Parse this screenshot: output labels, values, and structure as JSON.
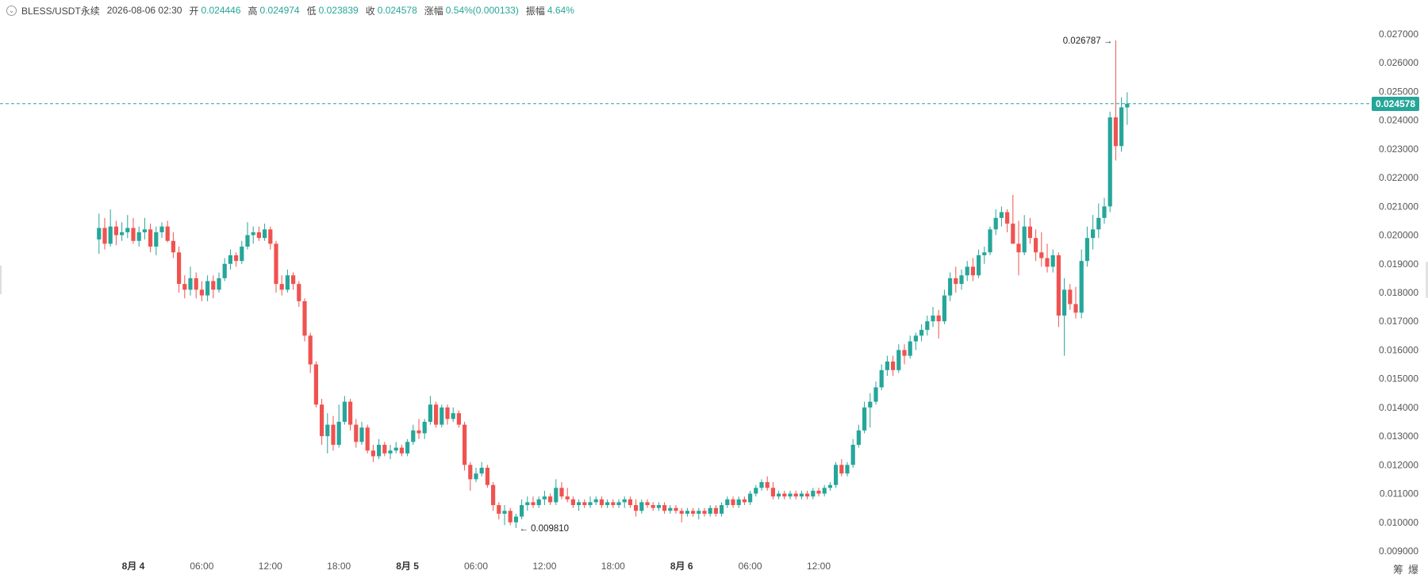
{
  "header": {
    "symbol": "BLESS/USDT永续",
    "time": "2026-08-06 02:30",
    "open_label": "开",
    "open": "0.024446",
    "high_label": "高",
    "high": "0.024974",
    "low_label": "低",
    "low": "0.023839",
    "close_label": "收",
    "close": "0.024578",
    "change_label": "涨幅",
    "change": "0.54%(0.000133)",
    "amplitude_label": "振幅",
    "amplitude": "4.64%"
  },
  "colors": {
    "up": "#26a69a",
    "down": "#ef5350",
    "last_price_line": "#26a69a"
  },
  "corner_buttons": [
    "筹",
    "爆"
  ],
  "chart_data": {
    "type": "candlestick",
    "y_axis": {
      "min": 0.009,
      "max": 0.027,
      "ticks": [
        "0.009000",
        "0.010000",
        "0.011000",
        "0.012000",
        "0.013000",
        "0.014000",
        "0.015000",
        "0.016000",
        "0.017000",
        "0.018000",
        "0.019000",
        "0.020000",
        "0.021000",
        "0.022000",
        "0.023000",
        "0.024000",
        "0.025000",
        "0.026000",
        "0.027000"
      ],
      "position": "right"
    },
    "x_axis": {
      "ticks": [
        {
          "label": "8月 4",
          "time": "2026-08-04 00:00",
          "bold": true
        },
        {
          "label": "06:00",
          "time": "2026-08-04 06:00",
          "bold": false
        },
        {
          "label": "12:00",
          "time": "2026-08-04 12:00",
          "bold": false
        },
        {
          "label": "18:00",
          "time": "2026-08-04 18:00",
          "bold": false
        },
        {
          "label": "8月 5",
          "time": "2026-08-05 00:00",
          "bold": true
        },
        {
          "label": "06:00",
          "time": "2026-08-05 06:00",
          "bold": false
        },
        {
          "label": "12:00",
          "time": "2026-08-05 12:00",
          "bold": false
        },
        {
          "label": "18:00",
          "time": "2026-08-05 18:00",
          "bold": false
        },
        {
          "label": "8月 6",
          "time": "2026-08-06 00:00",
          "bold": true
        },
        {
          "label": "06:00",
          "time": "2026-08-06 06:00",
          "bold": false
        },
        {
          "label": "12:00",
          "time": "2026-08-06 12:00",
          "bold": false
        }
      ]
    },
    "interval": "30m",
    "last_price": "0.024578",
    "annotations": {
      "high": "0.026787",
      "low": "0.009810"
    },
    "candles_start": "2026-08-03 21:00",
    "candles": [
      [
        0.01985,
        0.02075,
        0.01935,
        0.02025
      ],
      [
        0.02025,
        0.0206,
        0.0195,
        0.0197
      ],
      [
        0.0197,
        0.0209,
        0.0196,
        0.0203
      ],
      [
        0.0203,
        0.0205,
        0.01965,
        0.02
      ],
      [
        0.02,
        0.02045,
        0.0198,
        0.0201
      ],
      [
        0.0201,
        0.0207,
        0.0199,
        0.02025
      ],
      [
        0.02025,
        0.0206,
        0.0197,
        0.0198
      ],
      [
        0.0198,
        0.0203,
        0.0196,
        0.0201
      ],
      [
        0.0201,
        0.0206,
        0.01985,
        0.0202
      ],
      [
        0.0202,
        0.0204,
        0.0194,
        0.0196
      ],
      [
        0.0196,
        0.0203,
        0.0193,
        0.0201
      ],
      [
        0.0201,
        0.02045,
        0.0199,
        0.0203
      ],
      [
        0.0203,
        0.0205,
        0.01975,
        0.0198
      ],
      [
        0.0198,
        0.0201,
        0.0192,
        0.0194
      ],
      [
        0.0194,
        0.0196,
        0.018,
        0.0183
      ],
      [
        0.0183,
        0.0186,
        0.0178,
        0.0181
      ],
      [
        0.0181,
        0.0189,
        0.0179,
        0.0185
      ],
      [
        0.0185,
        0.0187,
        0.0178,
        0.0181
      ],
      [
        0.0181,
        0.0184,
        0.0177,
        0.0179
      ],
      [
        0.0179,
        0.0186,
        0.0177,
        0.0184
      ],
      [
        0.0184,
        0.0186,
        0.0178,
        0.0181
      ],
      [
        0.0181,
        0.0187,
        0.018,
        0.0185
      ],
      [
        0.0185,
        0.0192,
        0.0184,
        0.019
      ],
      [
        0.019,
        0.0195,
        0.0188,
        0.0193
      ],
      [
        0.0193,
        0.0194,
        0.0189,
        0.0191
      ],
      [
        0.0191,
        0.0198,
        0.019,
        0.0196
      ],
      [
        0.0196,
        0.02045,
        0.0195,
        0.02
      ],
      [
        0.02,
        0.0203,
        0.0197,
        0.0201
      ],
      [
        0.0201,
        0.0203,
        0.0198,
        0.0199
      ],
      [
        0.0199,
        0.0204,
        0.0198,
        0.0202
      ],
      [
        0.0202,
        0.0203,
        0.0195,
        0.0197
      ],
      [
        0.0197,
        0.0198,
        0.018,
        0.0183
      ],
      [
        0.0183,
        0.0186,
        0.0179,
        0.0181
      ],
      [
        0.0181,
        0.0188,
        0.018,
        0.0186
      ],
      [
        0.0186,
        0.0187,
        0.0181,
        0.0183
      ],
      [
        0.0183,
        0.0184,
        0.0175,
        0.0177
      ],
      [
        0.0177,
        0.0178,
        0.0163,
        0.0165
      ],
      [
        0.0165,
        0.0166,
        0.0152,
        0.0155
      ],
      [
        0.0155,
        0.0156,
        0.014,
        0.0141
      ],
      [
        0.0141,
        0.0143,
        0.0127,
        0.013
      ],
      [
        0.013,
        0.0138,
        0.0124,
        0.0134
      ],
      [
        0.0134,
        0.0137,
        0.0125,
        0.0127
      ],
      [
        0.0127,
        0.0141,
        0.0126,
        0.0135
      ],
      [
        0.0135,
        0.0144,
        0.0134,
        0.0142
      ],
      [
        0.0142,
        0.0143,
        0.0132,
        0.0134
      ],
      [
        0.0134,
        0.0136,
        0.0126,
        0.0128
      ],
      [
        0.0128,
        0.0135,
        0.0127,
        0.0133
      ],
      [
        0.0133,
        0.0134,
        0.0124,
        0.0125
      ],
      [
        0.0125,
        0.0127,
        0.0121,
        0.0123
      ],
      [
        0.0123,
        0.0129,
        0.0122,
        0.0127
      ],
      [
        0.0127,
        0.0128,
        0.0123,
        0.0124
      ],
      [
        0.0124,
        0.0127,
        0.0122,
        0.0125
      ],
      [
        0.0125,
        0.0128,
        0.0124,
        0.0126
      ],
      [
        0.0126,
        0.0127,
        0.0123,
        0.0124
      ],
      [
        0.0124,
        0.0129,
        0.0123,
        0.0128
      ],
      [
        0.0128,
        0.0134,
        0.0127,
        0.0132
      ],
      [
        0.0132,
        0.0136,
        0.0129,
        0.0131
      ],
      [
        0.0131,
        0.0136,
        0.0129,
        0.0135
      ],
      [
        0.0135,
        0.0144,
        0.0134,
        0.0141
      ],
      [
        0.0141,
        0.0142,
        0.0133,
        0.0134
      ],
      [
        0.0134,
        0.0141,
        0.0133,
        0.014
      ],
      [
        0.014,
        0.0141,
        0.0134,
        0.0136
      ],
      [
        0.0136,
        0.014,
        0.0135,
        0.0138
      ],
      [
        0.0138,
        0.0139,
        0.0133,
        0.0134
      ],
      [
        0.0134,
        0.0135,
        0.0118,
        0.012
      ],
      [
        0.012,
        0.0121,
        0.0111,
        0.0115
      ],
      [
        0.0115,
        0.0119,
        0.0114,
        0.0117
      ],
      [
        0.0117,
        0.0121,
        0.0116,
        0.0119
      ],
      [
        0.0119,
        0.012,
        0.0112,
        0.0113
      ],
      [
        0.0113,
        0.0114,
        0.0104,
        0.0106
      ],
      [
        0.0106,
        0.0107,
        0.0101,
        0.0103
      ],
      [
        0.0103,
        0.0106,
        0.0099,
        0.0104
      ],
      [
        0.0104,
        0.0105,
        0.0099,
        0.01
      ],
      [
        0.01,
        0.0103,
        0.0098,
        0.0102
      ],
      [
        0.0102,
        0.0108,
        0.0101,
        0.0106
      ],
      [
        0.0106,
        0.0109,
        0.0104,
        0.0107
      ],
      [
        0.0107,
        0.0109,
        0.0105,
        0.0106
      ],
      [
        0.0106,
        0.0109,
        0.0105,
        0.0108
      ],
      [
        0.0108,
        0.0111,
        0.0106,
        0.0109
      ],
      [
        0.0109,
        0.011,
        0.0106,
        0.0107
      ],
      [
        0.0107,
        0.0115,
        0.0106,
        0.0112
      ],
      [
        0.0112,
        0.0114,
        0.0108,
        0.0109
      ],
      [
        0.0109,
        0.0112,
        0.0107,
        0.0108
      ],
      [
        0.0108,
        0.0109,
        0.0105,
        0.0106
      ],
      [
        0.0106,
        0.0108,
        0.0104,
        0.0107
      ],
      [
        0.0107,
        0.0108,
        0.0105,
        0.0106
      ],
      [
        0.0106,
        0.0109,
        0.0105,
        0.0107
      ],
      [
        0.0107,
        0.0109,
        0.0106,
        0.0108
      ],
      [
        0.0108,
        0.0109,
        0.0105,
        0.0106
      ],
      [
        0.0106,
        0.0108,
        0.0105,
        0.0107
      ],
      [
        0.0107,
        0.0108,
        0.0105,
        0.0106
      ],
      [
        0.0106,
        0.0108,
        0.0105,
        0.0107
      ],
      [
        0.0107,
        0.0109,
        0.0105,
        0.0108
      ],
      [
        0.0108,
        0.0109,
        0.0105,
        0.0106
      ],
      [
        0.0106,
        0.0108,
        0.0102,
        0.0104
      ],
      [
        0.0104,
        0.0108,
        0.0103,
        0.0107
      ],
      [
        0.0107,
        0.0108,
        0.0105,
        0.0106
      ],
      [
        0.0106,
        0.0107,
        0.0104,
        0.0105
      ],
      [
        0.0105,
        0.0107,
        0.0104,
        0.0106
      ],
      [
        0.0106,
        0.0107,
        0.0103,
        0.0104
      ],
      [
        0.0104,
        0.0106,
        0.0103,
        0.0105
      ],
      [
        0.0105,
        0.0106,
        0.0103,
        0.0104
      ],
      [
        0.0104,
        0.0105,
        0.01,
        0.0103
      ],
      [
        0.0103,
        0.0105,
        0.0102,
        0.0104
      ],
      [
        0.0104,
        0.0105,
        0.0102,
        0.0103
      ],
      [
        0.0103,
        0.0105,
        0.0101,
        0.0104
      ],
      [
        0.0104,
        0.0105,
        0.0102,
        0.0103
      ],
      [
        0.0103,
        0.0106,
        0.0102,
        0.0105
      ],
      [
        0.0105,
        0.0106,
        0.0102,
        0.0103
      ],
      [
        0.0103,
        0.0107,
        0.0102,
        0.0106
      ],
      [
        0.0106,
        0.0109,
        0.0105,
        0.0108
      ],
      [
        0.0108,
        0.0109,
        0.0105,
        0.0106
      ],
      [
        0.0106,
        0.0109,
        0.0105,
        0.0108
      ],
      [
        0.0108,
        0.0109,
        0.0106,
        0.0107
      ],
      [
        0.0107,
        0.0111,
        0.0106,
        0.011
      ],
      [
        0.011,
        0.0113,
        0.0109,
        0.0112
      ],
      [
        0.0112,
        0.0115,
        0.0111,
        0.0114
      ],
      [
        0.0114,
        0.0116,
        0.0111,
        0.0112
      ],
      [
        0.0112,
        0.0114,
        0.0108,
        0.0109
      ],
      [
        0.0109,
        0.0111,
        0.0108,
        0.011
      ],
      [
        0.011,
        0.0111,
        0.0108,
        0.0109
      ],
      [
        0.0109,
        0.0111,
        0.0108,
        0.011
      ],
      [
        0.011,
        0.0111,
        0.0108,
        0.0109
      ],
      [
        0.0109,
        0.0111,
        0.0108,
        0.011
      ],
      [
        0.011,
        0.0111,
        0.0108,
        0.0109
      ],
      [
        0.0109,
        0.0112,
        0.0108,
        0.0111
      ],
      [
        0.0111,
        0.0112,
        0.0109,
        0.011
      ],
      [
        0.011,
        0.0113,
        0.0109,
        0.0112
      ],
      [
        0.0112,
        0.0114,
        0.0111,
        0.0113
      ],
      [
        0.0113,
        0.0121,
        0.0112,
        0.012
      ],
      [
        0.012,
        0.0122,
        0.0116,
        0.0117
      ],
      [
        0.0117,
        0.0121,
        0.0116,
        0.012
      ],
      [
        0.012,
        0.0129,
        0.0119,
        0.0127
      ],
      [
        0.0127,
        0.0134,
        0.0126,
        0.0132
      ],
      [
        0.0132,
        0.0142,
        0.0131,
        0.014
      ],
      [
        0.014,
        0.0145,
        0.0133,
        0.0142
      ],
      [
        0.0142,
        0.0149,
        0.0141,
        0.0147
      ],
      [
        0.0147,
        0.0155,
        0.0146,
        0.0153
      ],
      [
        0.0153,
        0.0158,
        0.0151,
        0.0156
      ],
      [
        0.0156,
        0.0158,
        0.0151,
        0.0153
      ],
      [
        0.0153,
        0.0162,
        0.0152,
        0.016
      ],
      [
        0.016,
        0.0162,
        0.0155,
        0.0158
      ],
      [
        0.0158,
        0.0165,
        0.0157,
        0.0163
      ],
      [
        0.0163,
        0.0166,
        0.016,
        0.0165
      ],
      [
        0.0165,
        0.0169,
        0.0163,
        0.0167
      ],
      [
        0.0167,
        0.0172,
        0.0165,
        0.017
      ],
      [
        0.017,
        0.0175,
        0.0168,
        0.0172
      ],
      [
        0.0172,
        0.0174,
        0.0164,
        0.017
      ],
      [
        0.017,
        0.0181,
        0.0169,
        0.0179
      ],
      [
        0.0179,
        0.0187,
        0.0177,
        0.0185
      ],
      [
        0.0185,
        0.0189,
        0.018,
        0.0183
      ],
      [
        0.0183,
        0.0188,
        0.0181,
        0.0186
      ],
      [
        0.0186,
        0.0191,
        0.0184,
        0.0189
      ],
      [
        0.0189,
        0.0192,
        0.0184,
        0.0186
      ],
      [
        0.0186,
        0.0195,
        0.0185,
        0.0193
      ],
      [
        0.0193,
        0.0196,
        0.019,
        0.0194
      ],
      [
        0.0194,
        0.0203,
        0.0193,
        0.0202
      ],
      [
        0.0202,
        0.0209,
        0.02,
        0.0206
      ],
      [
        0.0206,
        0.021,
        0.0203,
        0.0208
      ],
      [
        0.0208,
        0.0209,
        0.0201,
        0.0204
      ],
      [
        0.0204,
        0.0214,
        0.0197,
        0.0197
      ],
      [
        0.0197,
        0.0205,
        0.0186,
        0.0194
      ],
      [
        0.0194,
        0.0207,
        0.0193,
        0.0203
      ],
      [
        0.0203,
        0.0206,
        0.0197,
        0.0199
      ],
      [
        0.0199,
        0.0202,
        0.0191,
        0.0194
      ],
      [
        0.0194,
        0.0201,
        0.0189,
        0.0192
      ],
      [
        0.0192,
        0.0197,
        0.0187,
        0.0189
      ],
      [
        0.0189,
        0.0195,
        0.0187,
        0.0193
      ],
      [
        0.0193,
        0.0194,
        0.0168,
        0.0172
      ],
      [
        0.0172,
        0.0185,
        0.0158,
        0.0181
      ],
      [
        0.0181,
        0.0183,
        0.0174,
        0.0176
      ],
      [
        0.0176,
        0.0182,
        0.0171,
        0.0173
      ],
      [
        0.0173,
        0.0195,
        0.0171,
        0.0191
      ],
      [
        0.0191,
        0.0203,
        0.0189,
        0.0199
      ],
      [
        0.0199,
        0.0207,
        0.0195,
        0.0202
      ],
      [
        0.0202,
        0.0211,
        0.0199,
        0.0206
      ],
      [
        0.0206,
        0.0213,
        0.0204,
        0.021
      ],
      [
        0.021,
        0.0243,
        0.0208,
        0.0241
      ],
      [
        0.0241,
        0.02678,
        0.0226,
        0.0231
      ],
      [
        0.0231,
        0.0248,
        0.0229,
        0.02445
      ],
      [
        0.024446,
        0.024974,
        0.023839,
        0.024578
      ]
    ]
  }
}
